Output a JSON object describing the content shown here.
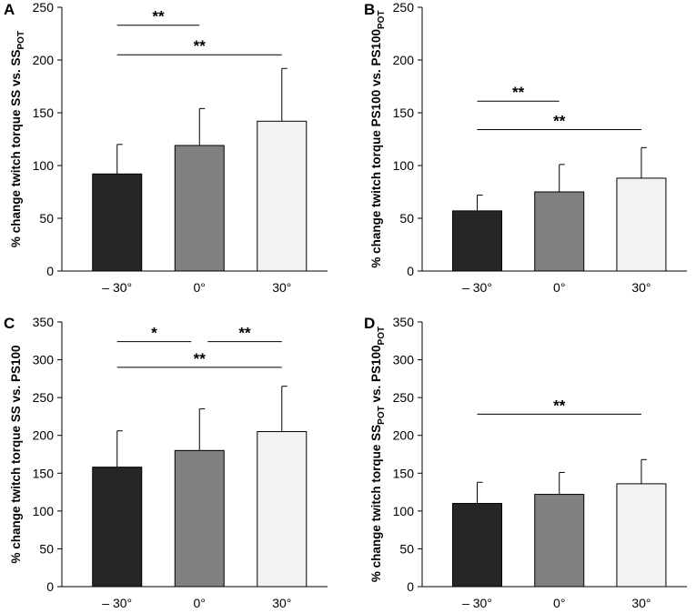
{
  "chart_data": [
    {
      "panel": "A",
      "type": "bar",
      "categories": [
        "– 30°",
        "0°",
        "30°"
      ],
      "values": [
        92,
        119,
        142
      ],
      "errors": [
        28,
        35,
        50
      ],
      "colors": [
        "#262626",
        "#808080",
        "#f2f2f2"
      ],
      "ylim": [
        0,
        250
      ],
      "yticks": [
        0,
        50,
        100,
        150,
        200,
        250
      ],
      "ylabel": {
        "main": "% change twitch torque SS vs. SS",
        "sub": "POT",
        "tail": ""
      },
      "annotations": [
        {
          "from": 0,
          "to": 1,
          "y": 233,
          "label": "**"
        },
        {
          "from": 0,
          "to": 2,
          "y": 205,
          "label": "**"
        }
      ]
    },
    {
      "panel": "B",
      "type": "bar",
      "categories": [
        "– 30°",
        "0°",
        "30°"
      ],
      "values": [
        57,
        75,
        88
      ],
      "errors": [
        15,
        26,
        29
      ],
      "colors": [
        "#262626",
        "#808080",
        "#f2f2f2"
      ],
      "ylim": [
        0,
        250
      ],
      "yticks": [
        0,
        50,
        100,
        150,
        200,
        250
      ],
      "ylabel": {
        "main": "% change twitch torque PS100 vs. PS100",
        "sub": "POT",
        "tail": ""
      },
      "annotations": [
        {
          "from": 0,
          "to": 1,
          "y": 161,
          "label": "**"
        },
        {
          "from": 0,
          "to": 2,
          "y": 134,
          "label": "**"
        }
      ]
    },
    {
      "panel": "C",
      "type": "bar",
      "categories": [
        "– 30°",
        "0°",
        "30°"
      ],
      "values": [
        158,
        180,
        205
      ],
      "errors": [
        48,
        55,
        60
      ],
      "colors": [
        "#262626",
        "#808080",
        "#f2f2f2"
      ],
      "ylim": [
        0,
        350
      ],
      "yticks": [
        0,
        50,
        100,
        150,
        200,
        250,
        300,
        350
      ],
      "ylabel": {
        "main": "% change twitch torque SS vs. PS100",
        "sub": "",
        "tail": ""
      },
      "annotations": [
        {
          "from": 0,
          "to": 0.9,
          "y": 324,
          "label": "*"
        },
        {
          "from": 1.1,
          "to": 2,
          "y": 324,
          "label": "**"
        },
        {
          "from": 0,
          "to": 2,
          "y": 290,
          "label": "**"
        }
      ]
    },
    {
      "panel": "D",
      "type": "bar",
      "categories": [
        "– 30°",
        "0°",
        "30°"
      ],
      "values": [
        110,
        122,
        136
      ],
      "errors": [
        28,
        29,
        32
      ],
      "colors": [
        "#262626",
        "#808080",
        "#f2f2f2"
      ],
      "ylim": [
        0,
        350
      ],
      "yticks": [
        0,
        50,
        100,
        150,
        200,
        250,
        300,
        350
      ],
      "ylabel": {
        "main": "% change twitch torque SS",
        "sub": "POT",
        "mid": " vs. PS100",
        "sub2": "POT"
      },
      "annotations": [
        {
          "from": 0,
          "to": 2,
          "y": 228,
          "label": "**"
        }
      ]
    }
  ]
}
